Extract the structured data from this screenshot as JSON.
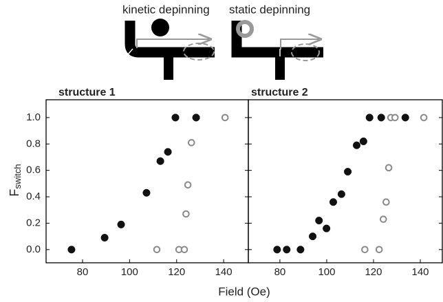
{
  "schematic": {
    "labels": [
      "kinetic depinning",
      "static depinning"
    ]
  },
  "chart_data": [
    {
      "type": "scatter",
      "title": "structure 1",
      "xlabel": "Field (Oe)",
      "ylabel": {
        "main": "F",
        "sub": "switch"
      },
      "xlim": [
        64.5,
        150.5
      ],
      "xticks": [
        80,
        100,
        120,
        140
      ],
      "ylim": [
        -0.1,
        1.135
      ],
      "yticks": [
        {
          "value": 0,
          "label": "0.0"
        },
        0.2,
        0.4,
        0.6,
        0.8,
        {
          "value": 1,
          "label": "1.0"
        }
      ],
      "series": [
        {
          "marker": "open",
          "color": "#8a8a8a",
          "x": [
            111.6,
            121,
            123.3,
            124,
            124.8,
            126.3,
            128.3,
            140.6
          ],
          "values": [
            0,
            0,
            0,
            0.27,
            0.49,
            0.81,
            1,
            1
          ]
        },
        {
          "marker": "filled",
          "color": "#111111",
          "x": [
            75.3,
            89.4,
            96.4,
            107.2,
            113.1,
            116.3,
            119.5,
            128.3
          ],
          "values": [
            0,
            0.09,
            0.19,
            0.43,
            0.67,
            0.74,
            1,
            1
          ]
        }
      ]
    },
    {
      "type": "scatter",
      "title": "structure 2",
      "xlim": [
        66.5,
        149.4
      ],
      "xticks": [
        80,
        100,
        120,
        140
      ],
      "ylim": [
        -0.1,
        1.135
      ],
      "series": [
        {
          "marker": "open",
          "color": "#8a8a8a",
          "x": [
            116.3,
            122.4,
            124.2,
            125.4,
            126.5,
            127.4,
            129.2,
            141.5
          ],
          "values": [
            0,
            0,
            0.23,
            0.36,
            0.62,
            1,
            1,
            1
          ]
        },
        {
          "marker": "filled",
          "color": "#111111",
          "x": [
            78.8,
            82.9,
            88.8,
            94,
            96.7,
            99.9,
            102.8,
            106.3,
            109,
            112.8,
            115.7,
            118.3,
            123.3,
            133.6
          ],
          "values": [
            0,
            0,
            0,
            0.1,
            0.22,
            0.16,
            0.36,
            0.42,
            0.59,
            0.79,
            0.82,
            1,
            1,
            1
          ]
        }
      ]
    }
  ]
}
